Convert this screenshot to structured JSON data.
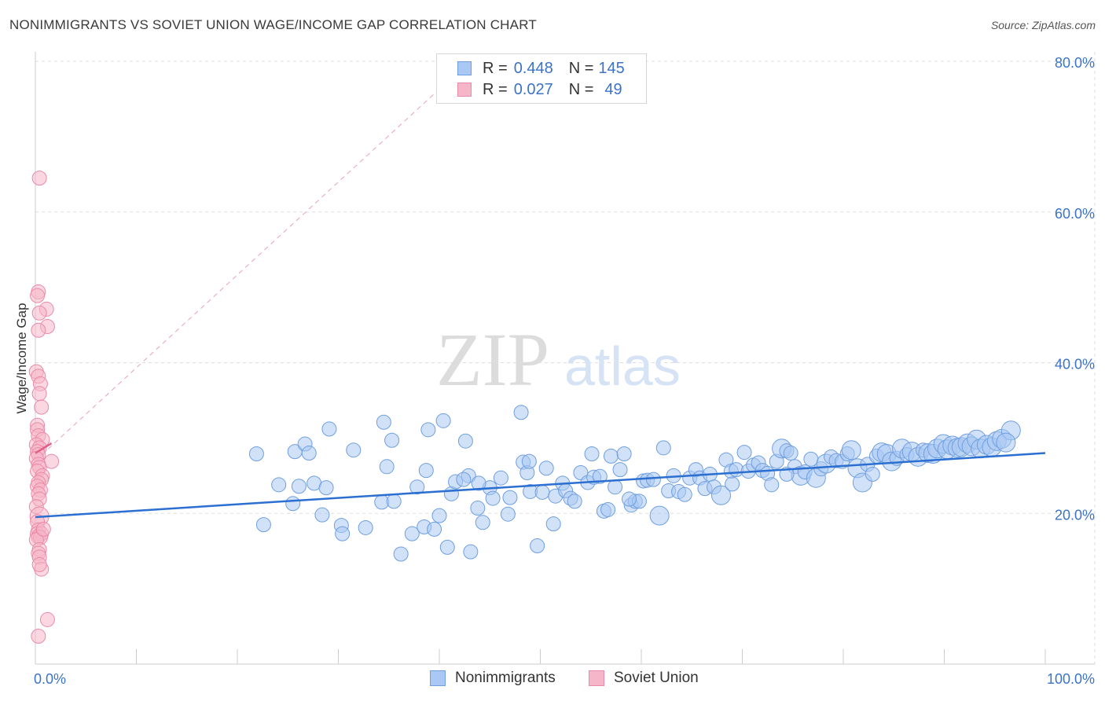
{
  "header": {
    "title": "NONIMMIGRANTS VS SOVIET UNION WAGE/INCOME GAP CORRELATION CHART",
    "source": "Source: ZipAtlas.com"
  },
  "watermark": {
    "zip": "ZIP",
    "atlas": "atlas"
  },
  "stats": [
    {
      "r_label": "R =",
      "r_value": "0.448",
      "n_label": "N =",
      "n_value": "145",
      "color": "#a9c8f3"
    },
    {
      "r_label": "R =",
      "r_value": "0.027",
      "n_label": "N =",
      "n_value": "49",
      "color": "#f6b6c9"
    }
  ],
  "colors": {
    "blue_fill": "#a9c8f3",
    "blue_stroke": "#6f9fe0",
    "blue_line": "#2b6fd1",
    "pink_fill": "#f6b6c9",
    "pink_stroke": "#ea8aa8",
    "pink_line": "#e0608a",
    "tick": "#3b73c9",
    "grid": "#dddddd"
  },
  "chart_data": {
    "type": "scatter",
    "title": "NONIMMIGRANTS VS SOVIET UNION WAGE/INCOME GAP CORRELATION CHART",
    "xlabel": "",
    "ylabel": "Wage/Income Gap",
    "xlim": [
      0,
      100
    ],
    "ylim": [
      0,
      80
    ],
    "x_tick_labels": [
      "0.0%",
      "100.0%"
    ],
    "y_ticks": [
      20,
      40,
      60,
      80
    ],
    "y_tick_labels": [
      "20.0%",
      "40.0%",
      "60.0%",
      "80.0%"
    ],
    "grid": true,
    "legend_position": "bottom-center",
    "series": [
      {
        "name": "Nonimmigrants",
        "color": "#a9c8f3",
        "trend": {
          "x": [
            0,
            100
          ],
          "y": [
            19.5,
            28.0
          ]
        },
        "points": [
          [
            21.9,
            27.9,
            1
          ],
          [
            24.1,
            23.8,
            1
          ],
          [
            25.5,
            21.3,
            1
          ],
          [
            25.7,
            28.2,
            1
          ],
          [
            26.1,
            23.6,
            1
          ],
          [
            26.7,
            29.2,
            1
          ],
          [
            27.1,
            28.0,
            1
          ],
          [
            27.6,
            24.0,
            1
          ],
          [
            28.8,
            23.4,
            1
          ],
          [
            29.1,
            31.2,
            1
          ],
          [
            28.4,
            19.8,
            1
          ],
          [
            30.3,
            18.4,
            1
          ],
          [
            30.4,
            17.3,
            1
          ],
          [
            31.5,
            28.4,
            1
          ],
          [
            32.7,
            18.1,
            1
          ],
          [
            34.3,
            21.5,
            1
          ],
          [
            34.5,
            32.1,
            1
          ],
          [
            34.8,
            26.2,
            1
          ],
          [
            35.3,
            29.7,
            1
          ],
          [
            35.5,
            21.6,
            1
          ],
          [
            36.2,
            14.6,
            1
          ],
          [
            37.3,
            17.3,
            1
          ],
          [
            37.8,
            23.5,
            1
          ],
          [
            38.5,
            18.2,
            1
          ],
          [
            38.9,
            31.1,
            1
          ],
          [
            39.5,
            17.9,
            1
          ],
          [
            40.0,
            19.7,
            1
          ],
          [
            40.4,
            32.3,
            1
          ],
          [
            40.8,
            15.5,
            1
          ],
          [
            41.2,
            22.6,
            1
          ],
          [
            41.6,
            24.2,
            1
          ],
          [
            42.6,
            29.6,
            1
          ],
          [
            42.9,
            25.0,
            1
          ],
          [
            43.1,
            14.9,
            1
          ],
          [
            43.8,
            20.7,
            1
          ],
          [
            44.3,
            18.8,
            1
          ],
          [
            45.0,
            23.4,
            1
          ],
          [
            45.3,
            22.0,
            1
          ],
          [
            46.1,
            24.7,
            1
          ],
          [
            46.8,
            19.9,
            1
          ],
          [
            47.0,
            22.1,
            1
          ],
          [
            48.1,
            33.4,
            1
          ],
          [
            48.3,
            26.8,
            1
          ],
          [
            48.7,
            25.4,
            1
          ],
          [
            49.0,
            22.9,
            1
          ],
          [
            49.7,
            15.7,
            1
          ],
          [
            50.2,
            22.8,
            1
          ],
          [
            50.6,
            26.0,
            1
          ],
          [
            51.3,
            18.6,
            1
          ],
          [
            51.5,
            22.3,
            1
          ],
          [
            52.2,
            24.0,
            1
          ],
          [
            52.5,
            23.0,
            1
          ],
          [
            53.0,
            22.0,
            1
          ],
          [
            53.4,
            21.6,
            1
          ],
          [
            54.0,
            25.4,
            1
          ],
          [
            54.7,
            24.1,
            1
          ],
          [
            55.1,
            27.9,
            1
          ],
          [
            55.3,
            24.8,
            1
          ],
          [
            55.9,
            24.9,
            1
          ],
          [
            56.3,
            20.3,
            1
          ],
          [
            56.7,
            20.5,
            1
          ],
          [
            57.0,
            27.6,
            1
          ],
          [
            57.4,
            23.5,
            1
          ],
          [
            57.9,
            25.8,
            1
          ],
          [
            58.3,
            27.9,
            1
          ],
          [
            59.0,
            21.1,
            1
          ],
          [
            59.4,
            21.6,
            1
          ],
          [
            59.8,
            21.6,
            1
          ],
          [
            60.2,
            24.3,
            1
          ],
          [
            60.6,
            24.4,
            1
          ],
          [
            61.2,
            24.5,
            1
          ],
          [
            61.8,
            19.7,
            2
          ],
          [
            62.2,
            28.7,
            1
          ],
          [
            62.7,
            23.0,
            1
          ],
          [
            63.2,
            25.0,
            1
          ],
          [
            63.7,
            22.9,
            1
          ],
          [
            64.3,
            22.5,
            1
          ],
          [
            64.8,
            24.7,
            1
          ],
          [
            65.4,
            25.8,
            1
          ],
          [
            65.8,
            24.7,
            1
          ],
          [
            66.3,
            23.3,
            1
          ],
          [
            66.8,
            25.2,
            1
          ],
          [
            67.2,
            23.5,
            1
          ],
          [
            67.9,
            22.4,
            2
          ],
          [
            68.4,
            27.1,
            1
          ],
          [
            68.9,
            25.6,
            1
          ],
          [
            69.4,
            25.8,
            1
          ],
          [
            70.2,
            28.1,
            1
          ],
          [
            70.6,
            25.6,
            1
          ],
          [
            71.1,
            26.4,
            1
          ],
          [
            71.6,
            26.7,
            1
          ],
          [
            72.0,
            25.7,
            1
          ],
          [
            72.5,
            25.3,
            1
          ],
          [
            72.9,
            23.8,
            1
          ],
          [
            73.4,
            26.9,
            1
          ],
          [
            73.9,
            28.6,
            2
          ],
          [
            74.4,
            28.3,
            1
          ],
          [
            74.8,
            28.0,
            1
          ],
          [
            75.2,
            26.2,
            1
          ],
          [
            75.8,
            25.0,
            2
          ],
          [
            76.2,
            25.5,
            1
          ],
          [
            76.8,
            27.2,
            1
          ],
          [
            77.3,
            24.7,
            2
          ],
          [
            77.8,
            25.9,
            1
          ],
          [
            78.3,
            26.6,
            2
          ],
          [
            78.8,
            27.5,
            1
          ],
          [
            79.3,
            27.0,
            1
          ],
          [
            79.9,
            26.9,
            1
          ],
          [
            80.4,
            27.9,
            1
          ],
          [
            80.8,
            28.4,
            2
          ],
          [
            81.4,
            26.0,
            2
          ],
          [
            81.9,
            24.1,
            2
          ],
          [
            82.4,
            26.5,
            1
          ],
          [
            82.9,
            25.2,
            1
          ],
          [
            83.3,
            27.6,
            1
          ],
          [
            83.8,
            28.1,
            2
          ],
          [
            84.3,
            27.9,
            2
          ],
          [
            84.8,
            26.9,
            2
          ],
          [
            85.3,
            27.3,
            1
          ],
          [
            85.8,
            28.6,
            2
          ],
          [
            86.3,
            27.8,
            1
          ],
          [
            86.8,
            28.2,
            2
          ],
          [
            87.4,
            27.5,
            2
          ],
          [
            87.9,
            28.4,
            1
          ],
          [
            88.4,
            28.0,
            2
          ],
          [
            88.9,
            27.9,
            2
          ],
          [
            89.3,
            28.6,
            2
          ],
          [
            89.9,
            29.2,
            2
          ],
          [
            90.3,
            28.5,
            2
          ],
          [
            90.8,
            29.0,
            2
          ],
          [
            91.3,
            28.7,
            2
          ],
          [
            91.7,
            28.8,
            2
          ],
          [
            92.3,
            29.3,
            2
          ],
          [
            92.7,
            28.9,
            2
          ],
          [
            93.2,
            29.8,
            2
          ],
          [
            93.6,
            28.6,
            2
          ],
          [
            94.2,
            29.1,
            2
          ],
          [
            94.7,
            28.8,
            2
          ],
          [
            95.2,
            29.6,
            2
          ],
          [
            95.7,
            29.9,
            2
          ],
          [
            96.6,
            31.0,
            2
          ],
          [
            96.1,
            29.4,
            2
          ],
          [
            42.4,
            24.5,
            1
          ],
          [
            58.8,
            21.9,
            1
          ],
          [
            74.4,
            25.2,
            1
          ],
          [
            69.0,
            23.9,
            1
          ],
          [
            48.9,
            26.9,
            1
          ],
          [
            43.9,
            24.0,
            1
          ],
          [
            38.7,
            25.7,
            1
          ],
          [
            22.6,
            18.5,
            1
          ]
        ]
      },
      {
        "name": "Soviet Union",
        "color": "#f6b6c9",
        "trend": {
          "x": [
            0,
            1.6
          ],
          "y": [
            28.0,
            29.3
          ]
        },
        "points": [
          [
            0.4,
            64.5,
            1
          ],
          [
            0.3,
            49.4,
            1
          ],
          [
            0.2,
            48.9,
            1
          ],
          [
            1.1,
            47.1,
            1
          ],
          [
            0.4,
            46.6,
            1
          ],
          [
            1.2,
            44.8,
            1
          ],
          [
            0.3,
            44.3,
            1
          ],
          [
            0.1,
            38.8,
            1
          ],
          [
            0.3,
            38.2,
            1
          ],
          [
            0.5,
            37.2,
            1
          ],
          [
            0.4,
            35.9,
            1
          ],
          [
            0.6,
            34.1,
            1
          ],
          [
            0.2,
            31.7,
            1
          ],
          [
            0.2,
            31.1,
            1
          ],
          [
            0.3,
            30.3,
            1
          ],
          [
            0.7,
            29.8,
            1
          ],
          [
            0.1,
            29.1,
            1
          ],
          [
            0.4,
            28.7,
            1
          ],
          [
            0.2,
            28.2,
            1
          ],
          [
            0.3,
            27.8,
            1
          ],
          [
            0.1,
            27.3,
            1
          ],
          [
            1.6,
            26.9,
            1
          ],
          [
            0.3,
            26.5,
            1
          ],
          [
            0.4,
            26.1,
            1
          ],
          [
            0.2,
            25.6,
            1
          ],
          [
            0.7,
            25.0,
            1
          ],
          [
            0.6,
            24.5,
            1
          ],
          [
            0.3,
            24.1,
            1
          ],
          [
            0.2,
            23.6,
            1
          ],
          [
            0.5,
            23.1,
            1
          ],
          [
            0.3,
            22.6,
            1
          ],
          [
            0.4,
            21.9,
            1
          ],
          [
            0.1,
            20.9,
            1
          ],
          [
            0.4,
            19.6,
            2
          ],
          [
            0.2,
            18.9,
            1
          ],
          [
            0.3,
            17.8,
            1
          ],
          [
            0.2,
            17.3,
            1
          ],
          [
            0.6,
            17.3,
            1
          ],
          [
            0.3,
            16.9,
            1
          ],
          [
            0.5,
            16.8,
            1
          ],
          [
            0.1,
            16.5,
            1
          ],
          [
            0.4,
            15.2,
            1
          ],
          [
            0.3,
            14.7,
            1
          ],
          [
            0.4,
            14.2,
            1
          ],
          [
            0.6,
            12.6,
            1
          ],
          [
            0.4,
            13.2,
            1
          ],
          [
            1.2,
            5.9,
            1
          ],
          [
            0.3,
            3.7,
            1
          ],
          [
            0.8,
            17.9,
            1
          ]
        ]
      }
    ]
  },
  "legend": [
    {
      "label": "Nonimmigrants",
      "color": "#a9c8f3",
      "border": "#6f9fe0"
    },
    {
      "label": "Soviet Union",
      "color": "#f6b6c9",
      "border": "#ea8aa8"
    }
  ]
}
